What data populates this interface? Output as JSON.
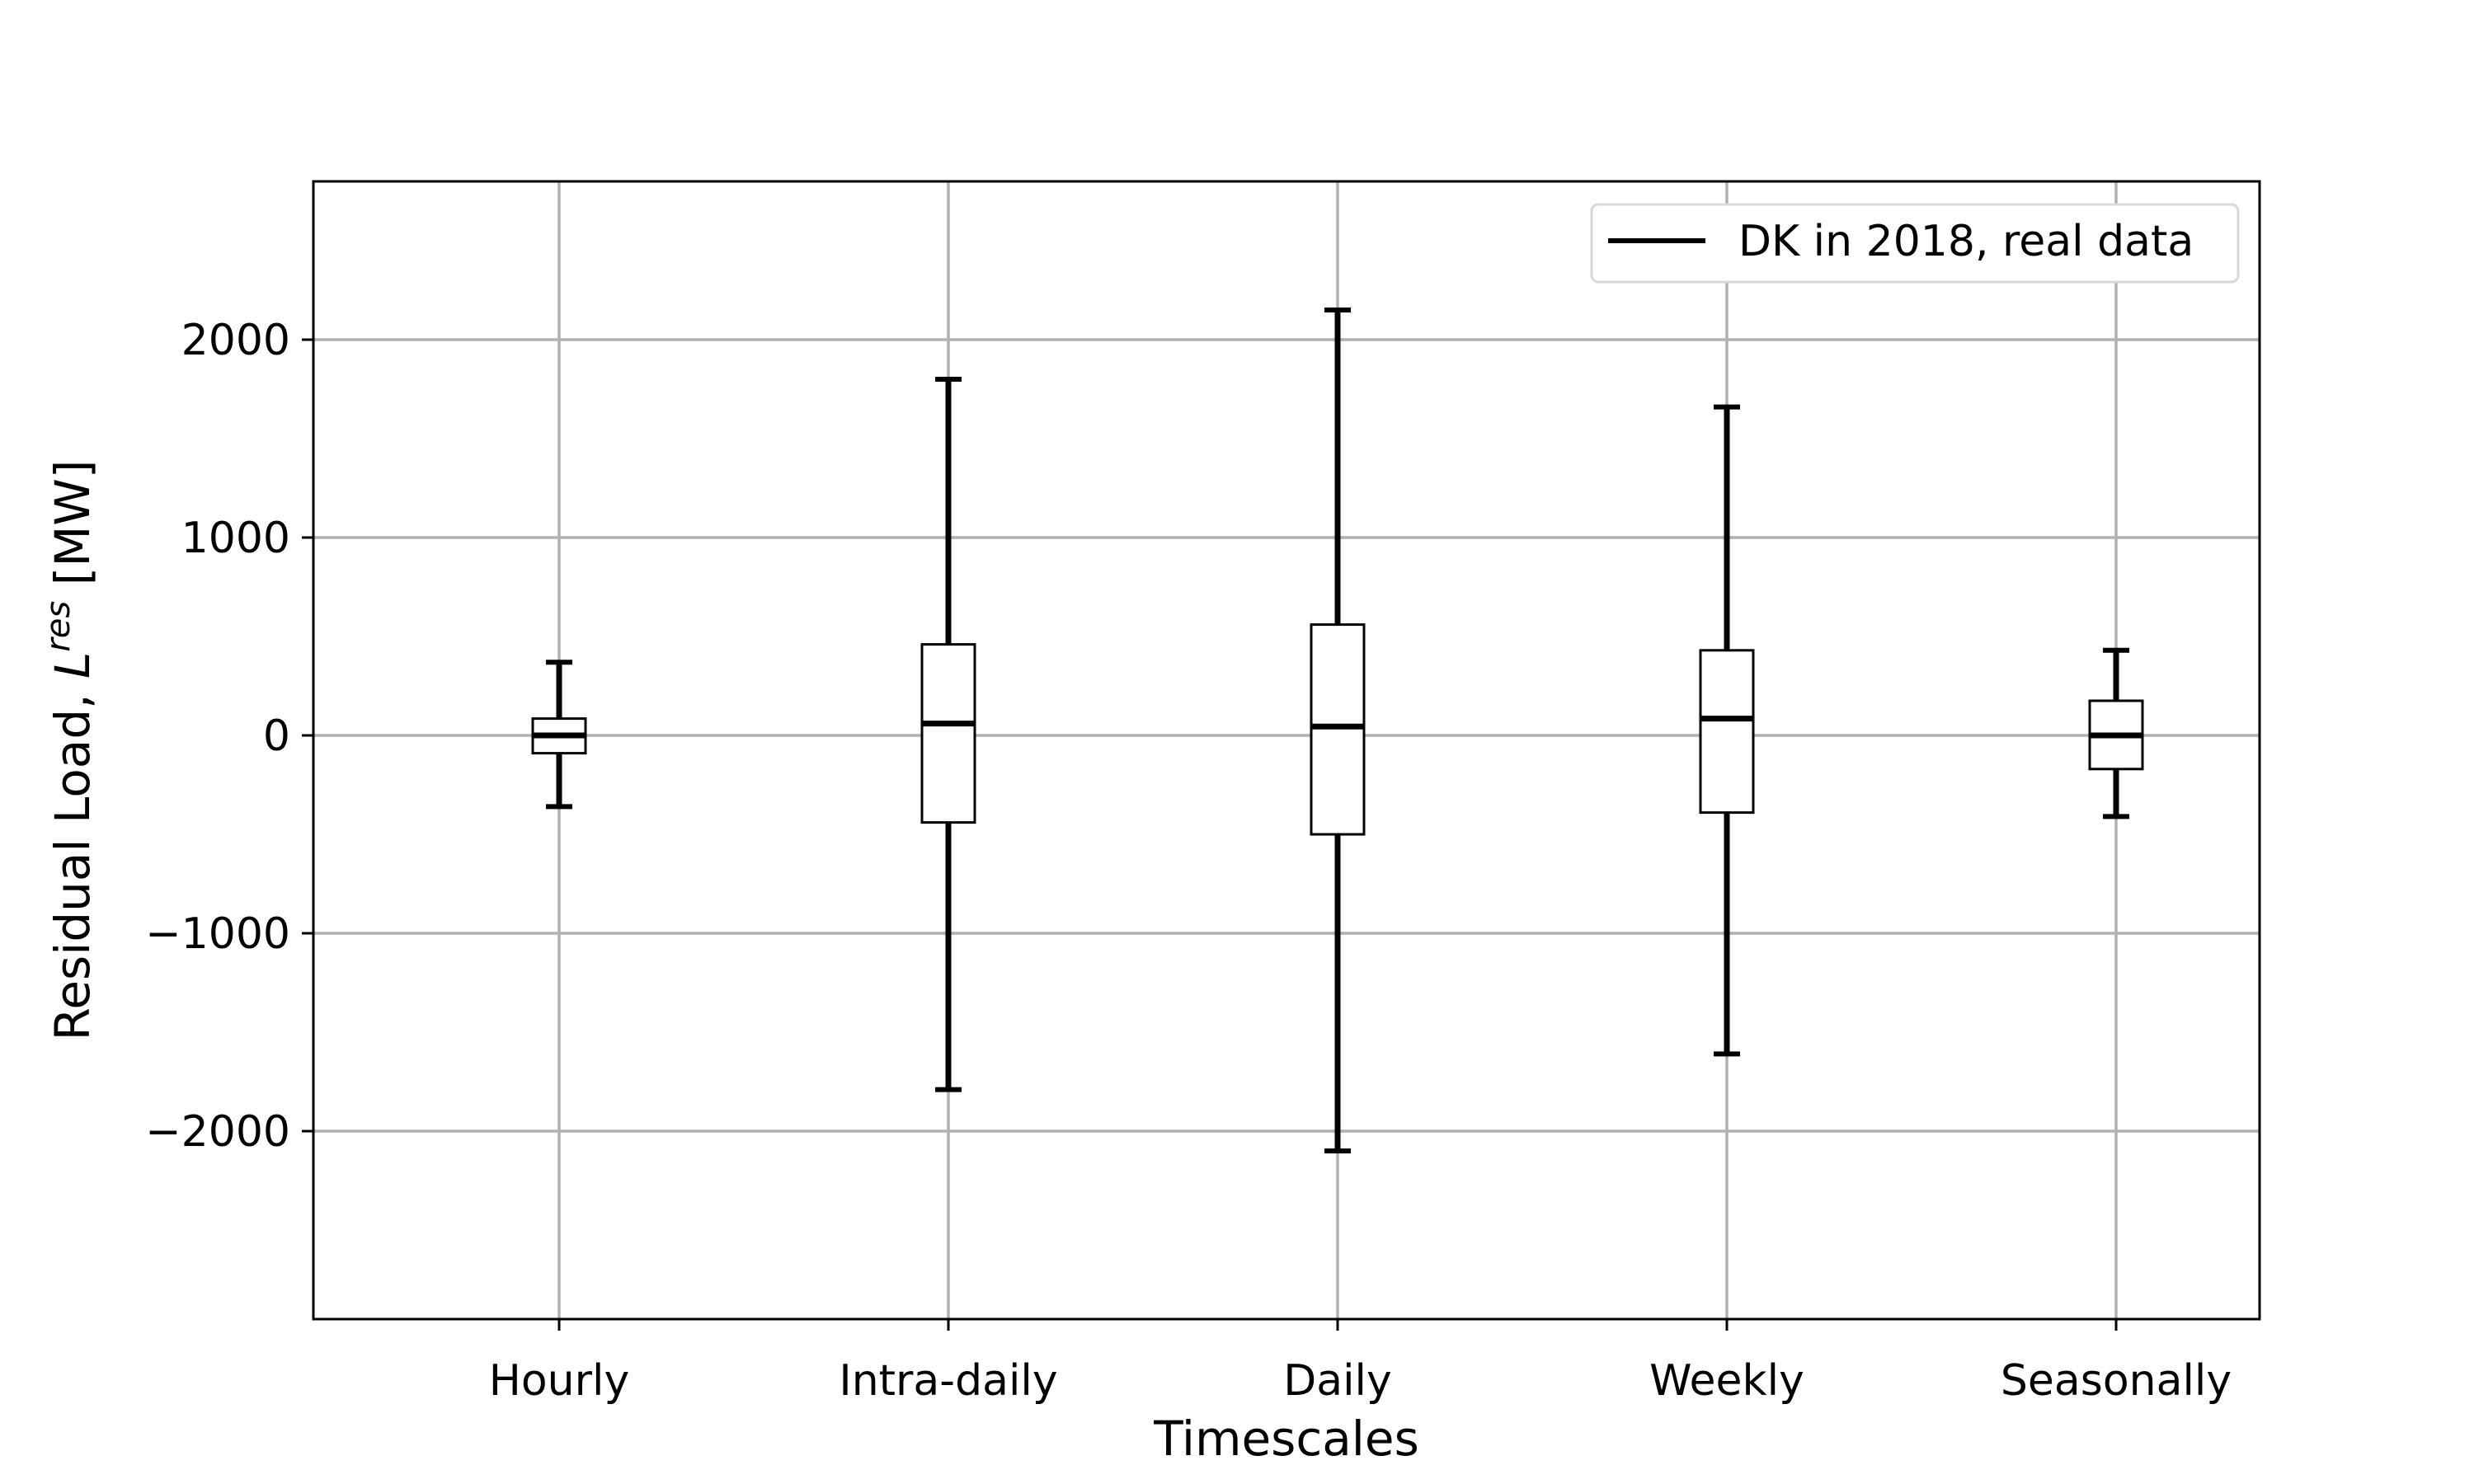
{
  "chart_data": {
    "type": "box",
    "title": "",
    "xlabel": "Timescales",
    "ylabel": {
      "prefix": "Residual Load, ",
      "symbol": "L",
      "superscript": "res",
      "unit": " [MW]"
    },
    "ylim": [
      -2950,
      2800
    ],
    "yticks": [
      -2000,
      -1000,
      0,
      1000,
      2000
    ],
    "ytick_labels": [
      "−2000",
      "−1000",
      "0",
      "1000",
      "2000"
    ],
    "categories": [
      "Hourly",
      "Intra-daily",
      "Daily",
      "Weekly",
      "Seasonally"
    ],
    "grid": true,
    "legend": {
      "position": "top-right",
      "entries": [
        "DK in 2018, real data"
      ]
    },
    "series": [
      {
        "name": "DK in 2018, real data",
        "boxes": [
          {
            "category": "Hourly",
            "whisker_low": -360,
            "q1": -90,
            "median": 0,
            "q3": 85,
            "whisker_high": 370
          },
          {
            "category": "Intra-daily",
            "whisker_low": -1790,
            "q1": -440,
            "median": 60,
            "q3": 460,
            "whisker_high": 1800
          },
          {
            "category": "Daily",
            "whisker_low": -2100,
            "q1": -500,
            "median": 45,
            "q3": 560,
            "whisker_high": 2150
          },
          {
            "category": "Weekly",
            "whisker_low": -1610,
            "q1": -390,
            "median": 85,
            "q3": 430,
            "whisker_high": 1660
          },
          {
            "category": "Seasonally",
            "whisker_low": -410,
            "q1": -170,
            "median": 0,
            "q3": 175,
            "whisker_high": 430
          }
        ]
      }
    ],
    "colors": {
      "box": "#000000",
      "grid": "#b0b0b0",
      "axes": "#000000",
      "legend_border": "#d8d8d8"
    }
  }
}
